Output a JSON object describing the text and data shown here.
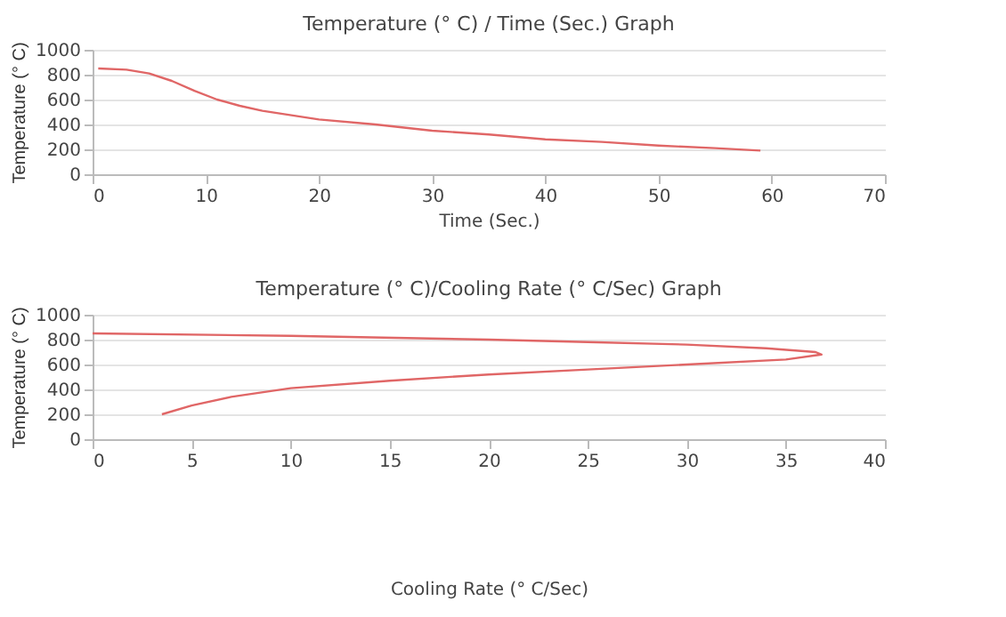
{
  "chart_data": [
    {
      "type": "line",
      "title": "Temperature (° C) / Time (Sec.) Graph",
      "xlabel": "Time (Sec.)",
      "ylabel": "Temperature (° C)",
      "xlim": [
        0,
        70
      ],
      "xticks": [
        0,
        10,
        20,
        30,
        40,
        50,
        60,
        70
      ],
      "ylim": [
        0,
        1000
      ],
      "yticks": [
        0,
        200,
        400,
        600,
        800,
        1000
      ],
      "grid": "y",
      "legend": false,
      "marker": "none",
      "line_style": "solid",
      "x": [
        0.5,
        3,
        5,
        7,
        9,
        11,
        13,
        15,
        20,
        25,
        30,
        35,
        40,
        45,
        50,
        55,
        59
      ],
      "series": [
        {
          "color": "#e06666",
          "values": [
            850,
            840,
            810,
            750,
            670,
            600,
            550,
            510,
            440,
            400,
            350,
            320,
            280,
            260,
            230,
            210,
            190
          ]
        }
      ]
    },
    {
      "type": "line",
      "title": "Temperature (° C)/Cooling Rate (° C/Sec) Graph",
      "xlabel": "Cooling Rate (° C/Sec)",
      "ylabel": "Temperature (° C)",
      "xlim": [
        0,
        40
      ],
      "xticks": [
        0,
        5,
        10,
        15,
        20,
        25,
        30,
        35,
        40
      ],
      "ylim": [
        0,
        1000
      ],
      "yticks": [
        0,
        200,
        400,
        600,
        800,
        1000
      ],
      "grid": "y",
      "legend": false,
      "marker": "none",
      "line_style": "solid",
      "series": [
        {
          "color": "#e06666",
          "x": [
            0,
            10,
            20,
            25,
            30,
            34,
            36.5,
            36.8,
            35,
            30,
            25,
            20,
            15,
            10,
            7,
            5,
            3.5
          ],
          "values": [
            850,
            830,
            800,
            780,
            760,
            730,
            700,
            680,
            640,
            600,
            560,
            520,
            470,
            410,
            340,
            270,
            200
          ]
        }
      ]
    }
  ]
}
